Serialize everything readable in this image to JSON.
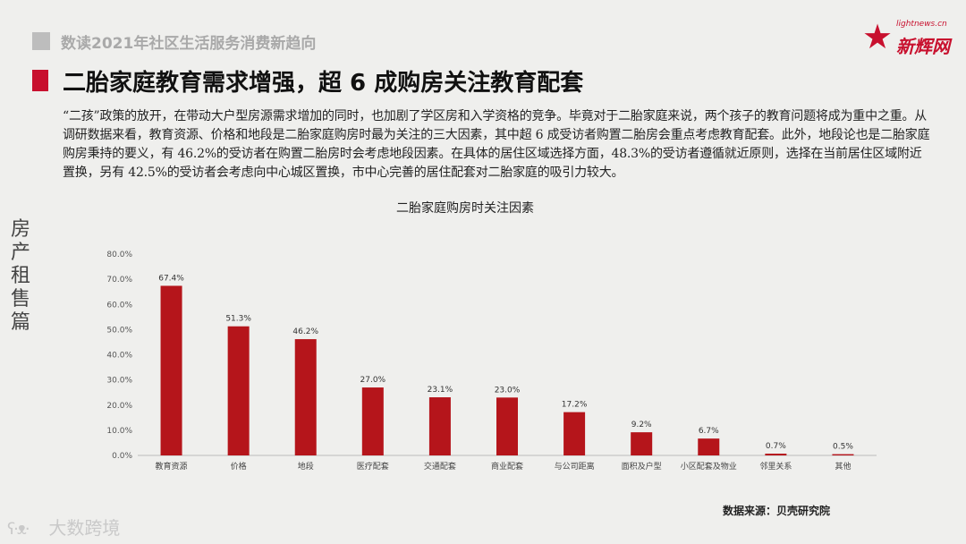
{
  "header": {
    "subtitle": "数读2021年社区生活服务消费新趋向"
  },
  "logo": {
    "small_text": "lightnews.cn",
    "name": "新辉网",
    "star": "★"
  },
  "title": "二胎家庭教育需求增强，超 6 成购房关注教育配套",
  "paragraph": "“二孩”政策的放开，在带动大户型房源需求增加的同时，也加剧了学区房和入学资格的竞争。毕竟对于二胎家庭来说，两个孩子的教育问题将成为重中之重。从调研数据来看，教育资源、价格和地段是二胎家庭购房时最为关注的三大因素，其中超 6 成受访者购置二胎房会重点考虑教育配套。此外，地段论也是二胎家庭购房秉持的要义，有 46.2%的受访者在购置二胎房时会考虑地段因素。在具体的居住区域选择方面，48.3%的受访者遵循就近原则，选择在当前居住区域附近置换，另有 42.5%的受访者会考虑向中心城区置换，市中心完善的居住配套对二胎家庭的吸引力较大。",
  "side_label": [
    "房",
    "产",
    "租",
    "售",
    "篇"
  ],
  "source": "数据来源：贝壳研究院",
  "watermark": {
    "icon": "ʕ·ᴥ·",
    "text": "大数跨境"
  },
  "colors": {
    "bar": "#b5151b",
    "accent": "#c8102e"
  },
  "chart_data": {
    "type": "bar",
    "title": "二胎家庭购房时关注因素",
    "categories": [
      "教育资源",
      "价格",
      "地段",
      "医疗配套",
      "交通配套",
      "商业配套",
      "与公司距离",
      "面积及户型",
      "小区配套及物业",
      "邻里关系",
      "其他"
    ],
    "values": [
      67.4,
      51.3,
      46.2,
      27.0,
      23.1,
      23.0,
      17.2,
      9.2,
      6.7,
      0.7,
      0.5
    ],
    "value_labels": [
      "67.4%",
      "51.3%",
      "46.2%",
      "27.0%",
      "23.1%",
      "23.0%",
      "17.2%",
      "9.2%",
      "6.7%",
      "0.7%",
      "0.5%"
    ],
    "yticks": [
      "0.0%",
      "10.0%",
      "20.0%",
      "30.0%",
      "40.0%",
      "50.0%",
      "60.0%",
      "70.0%",
      "80.0%"
    ],
    "ylim": [
      0,
      80
    ],
    "xlabel": "",
    "ylabel": "",
    "grid": false,
    "legend": "none"
  }
}
